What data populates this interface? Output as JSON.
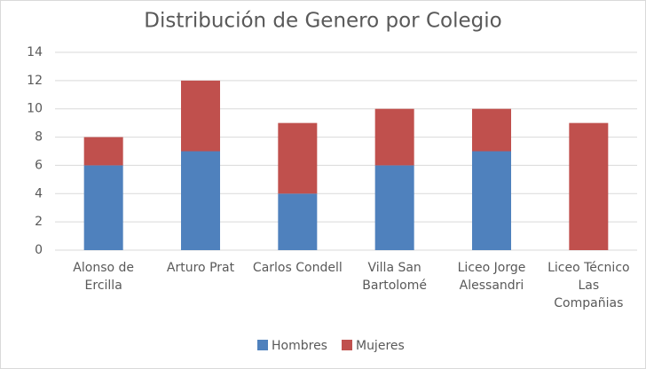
{
  "chart_data": {
    "type": "stacked_bar",
    "title": "Distribución de Genero por Colegio",
    "categories": [
      "Alonso de Ercilla",
      "Arturo Prat",
      "Carlos Condell",
      "Villa San Bartolomé",
      "Liceo Jorge Alessandri",
      "Liceo Técnico Las Compañias"
    ],
    "series": [
      {
        "name": "Hombres",
        "color": "#4f81bd",
        "values": [
          6,
          7,
          4,
          6,
          7,
          0
        ]
      },
      {
        "name": "Mujeres",
        "color": "#c0504d",
        "values": [
          2,
          5,
          5,
          4,
          3,
          9
        ]
      }
    ],
    "ylim": [
      0,
      14
    ],
    "yticks": [
      0,
      2,
      4,
      6,
      8,
      10,
      12,
      14
    ],
    "grid": true,
    "legend": "bottom"
  }
}
